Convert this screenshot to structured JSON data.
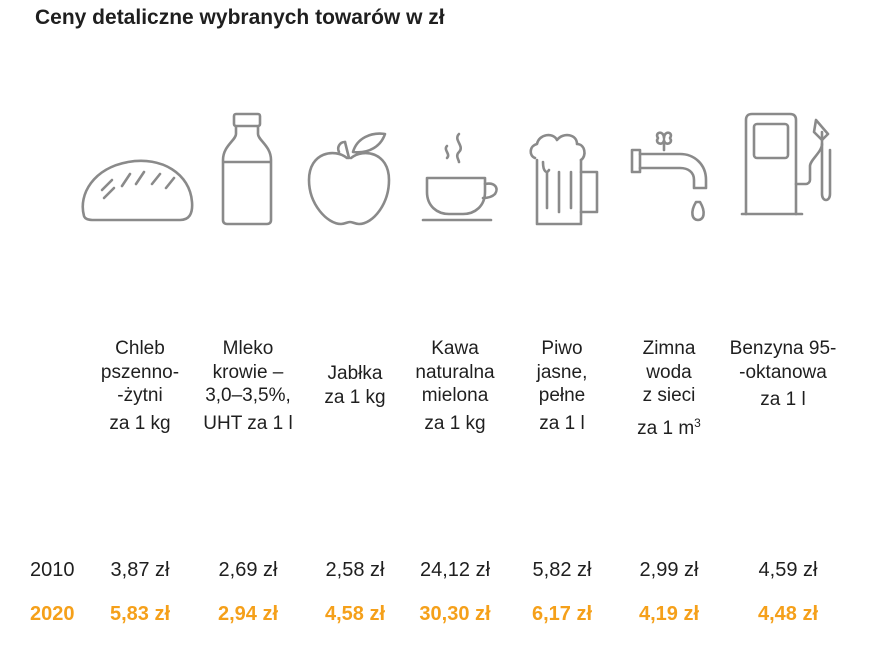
{
  "title": "Ceny detaliczne wybranych towarów w zł",
  "accent_color": "#f5a01a",
  "icon_color": "#8a8a8a",
  "products": [
    {
      "icon": "bread-icon",
      "lines": [
        "Chleb",
        "pszenno-",
        "-żytni"
      ],
      "unit": "za 1 kg"
    },
    {
      "icon": "milk-bottle-icon",
      "lines": [
        "Mleko",
        "krowie –",
        "3,0–3,5%,"
      ],
      "unit": "UHT za 1 l"
    },
    {
      "icon": "apple-icon",
      "lines": [
        "Jabłka"
      ],
      "unit": "za 1 kg"
    },
    {
      "icon": "coffee-cup-icon",
      "lines": [
        "Kawa",
        "naturalna",
        "mielona"
      ],
      "unit": "za 1 kg"
    },
    {
      "icon": "beer-mug-icon",
      "lines": [
        "Piwo",
        "jasne,",
        "pełne"
      ],
      "unit": "za 1 l"
    },
    {
      "icon": "water-tap-icon",
      "lines": [
        "Zimna",
        "woda",
        "z sieci"
      ],
      "unit": "za 1 m",
      "unit_sup": "3"
    },
    {
      "icon": "fuel-pump-icon",
      "lines": [
        "Benzyna 95-",
        "-oktanowa"
      ],
      "unit": "za 1 l"
    }
  ],
  "years": [
    {
      "year": "2010",
      "prices": [
        "3,87 zł",
        "2,69 zł",
        "2,58 zł",
        "24,12 zł",
        "5,82 zł",
        "2,99 zł",
        "4,59 zł"
      ]
    },
    {
      "year": "2020",
      "prices": [
        "5,83 zł",
        "2,94 zł",
        "4,58 zł",
        "30,30 zł",
        "6,17 zł",
        "4,19 zł",
        "4,48 zł"
      ]
    }
  ]
}
